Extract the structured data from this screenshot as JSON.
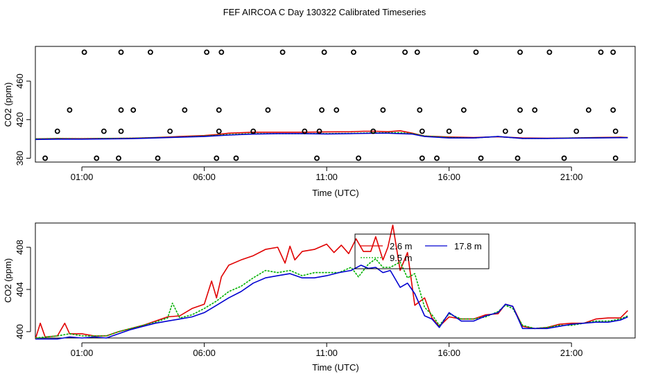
{
  "page": {
    "title": "FEF AIRCOA C  Day 130322  Calibrated Timeseries"
  },
  "colors": {
    "s26": "#e00000",
    "s95": "#00b000",
    "s178": "#0000d0",
    "points": "#000000",
    "axis": "#000000"
  },
  "chart_data": [
    {
      "id": "top",
      "type": "scatter+line",
      "xlabel": "Time (UTC)",
      "ylabel": "CO2 (ppm)",
      "xlim": [
        -0.9,
        23.6
      ],
      "ylim": [
        376,
        496
      ],
      "xticks": [
        1,
        6,
        11,
        16,
        21
      ],
      "xtick_labels": [
        "01:00",
        "06:00",
        "11:00",
        "16:00",
        "21:00"
      ],
      "yticks": [
        380,
        420,
        460
      ],
      "ytick_labels": [
        "380",
        "420",
        "460"
      ],
      "points": [
        [
          -0.5,
          380
        ],
        [
          0.0,
          408
        ],
        [
          0.5,
          430
        ],
        [
          1.1,
          490
        ],
        [
          1.6,
          380
        ],
        [
          1.9,
          408
        ],
        [
          2.5,
          380
        ],
        [
          2.6,
          408
        ],
        [
          2.6,
          430
        ],
        [
          2.6,
          490
        ],
        [
          3.1,
          430
        ],
        [
          3.8,
          490
        ],
        [
          4.1,
          380
        ],
        [
          4.6,
          408
        ],
        [
          5.2,
          430
        ],
        [
          6.1,
          490
        ],
        [
          6.5,
          380
        ],
        [
          6.6,
          408
        ],
        [
          6.6,
          430
        ],
        [
          6.7,
          490
        ],
        [
          7.3,
          380
        ],
        [
          8.0,
          408
        ],
        [
          8.6,
          430
        ],
        [
          9.2,
          490
        ],
        [
          10.1,
          408
        ],
        [
          10.6,
          380
        ],
        [
          10.7,
          408
        ],
        [
          10.8,
          430
        ],
        [
          10.9,
          490
        ],
        [
          11.4,
          430
        ],
        [
          12.1,
          490
        ],
        [
          12.3,
          380
        ],
        [
          12.9,
          408
        ],
        [
          13.3,
          430
        ],
        [
          14.2,
          490
        ],
        [
          14.7,
          490
        ],
        [
          14.8,
          430
        ],
        [
          14.9,
          408
        ],
        [
          14.9,
          380
        ],
        [
          15.5,
          380
        ],
        [
          16.0,
          408
        ],
        [
          16.6,
          430
        ],
        [
          17.1,
          490
        ],
        [
          17.3,
          380
        ],
        [
          18.3,
          408
        ],
        [
          18.8,
          380
        ],
        [
          18.9,
          408
        ],
        [
          18.9,
          430
        ],
        [
          18.9,
          490
        ],
        [
          19.5,
          430
        ],
        [
          20.1,
          490
        ],
        [
          20.7,
          380
        ],
        [
          21.2,
          408
        ],
        [
          21.7,
          430
        ],
        [
          22.2,
          490
        ],
        [
          22.7,
          490
        ],
        [
          22.7,
          430
        ],
        [
          22.8,
          408
        ],
        [
          22.8,
          380
        ]
      ],
      "series": [
        {
          "name": "2.6 m",
          "color_key": "s26",
          "x": [
            -0.9,
            0,
            1,
            2,
            3,
            4,
            5,
            6,
            6.5,
            7,
            8,
            9,
            10,
            11,
            12,
            12.5,
            13,
            13.5,
            14,
            14.5,
            15,
            16,
            17,
            18,
            19,
            20,
            21,
            22,
            23,
            23.3
          ],
          "y": [
            400,
            400.5,
            400.3,
            400.6,
            400.8,
            401.5,
            402.5,
            403.5,
            404.5,
            406,
            407,
            407,
            407,
            407.3,
            407.5,
            408,
            408,
            407.5,
            408.5,
            406,
            403,
            402,
            401.5,
            402.3,
            401,
            400.8,
            401,
            401.5,
            401.8,
            401.5
          ]
        },
        {
          "name": "9.5 m",
          "color_key": "s95",
          "x": [
            -0.9,
            0,
            1,
            2,
            3,
            4,
            5,
            6,
            7,
            8,
            9,
            10,
            11,
            12,
            13,
            13.5,
            14,
            14.5,
            15,
            16,
            17,
            18,
            19,
            20,
            21,
            22,
            23,
            23.3
          ],
          "y": [
            400,
            400.3,
            400.1,
            400.5,
            400.7,
            401.3,
            402,
            403,
            404.5,
            405.5,
            405.5,
            405.5,
            405.5,
            405.8,
            406.3,
            406.5,
            406.5,
            405.5,
            403,
            401.5,
            401,
            402.5,
            400.5,
            400.6,
            401,
            401.2,
            401.5,
            401.5
          ]
        },
        {
          "name": "17.8 m",
          "color_key": "s178",
          "x": [
            -0.9,
            0,
            1,
            2,
            3,
            4,
            5,
            6,
            7,
            8,
            9,
            10,
            11,
            12,
            13,
            13.5,
            14,
            14.5,
            15,
            16,
            17,
            18,
            19,
            20,
            21,
            22,
            23,
            23.3
          ],
          "y": [
            399.5,
            399.8,
            399.8,
            400,
            400.3,
            401,
            401.8,
            402.5,
            404,
            405,
            405.5,
            405.5,
            405.2,
            405.5,
            406,
            406,
            405.5,
            405,
            402.5,
            401,
            401,
            402.5,
            400.5,
            400.5,
            400.8,
            401,
            401.3,
            401.3
          ]
        }
      ]
    },
    {
      "id": "bottom",
      "type": "line",
      "xlabel": "Time (UTC)",
      "ylabel": "CO2 (ppm)",
      "xlim": [
        -0.9,
        23.6
      ],
      "ylim": [
        399.4,
        410.3
      ],
      "xticks": [
        1,
        6,
        11,
        16,
        21
      ],
      "xtick_labels": [
        "01:00",
        "06:00",
        "11:00",
        "16:00",
        "21:00"
      ],
      "yticks": [
        400,
        404,
        408
      ],
      "ytick_labels": [
        "400",
        "404",
        "408"
      ],
      "legend": {
        "placement": "top-center",
        "entries": [
          "2.6 m",
          "9.5 m",
          "17.8 m"
        ]
      },
      "series": [
        {
          "name": "2.6 m",
          "color_key": "s26",
          "x": [
            -0.9,
            -0.7,
            -0.5,
            0,
            0.3,
            0.5,
            1,
            1.5,
            2,
            2.5,
            3,
            3.5,
            4,
            4.5,
            5,
            5.5,
            6,
            6.3,
            6.5,
            6.7,
            7,
            7.5,
            8,
            8.5,
            9,
            9.3,
            9.5,
            9.7,
            10,
            10.5,
            11,
            11.3,
            11.6,
            11.9,
            12.2,
            12.5,
            12.8,
            13,
            13.3,
            13.5,
            13.7,
            14,
            14.3,
            14.6,
            15,
            15.3,
            15.6,
            16,
            16.5,
            17,
            17.5,
            18,
            18.3,
            18.6,
            19,
            19.5,
            20,
            20.5,
            21,
            21.5,
            22,
            22.5,
            23,
            23.3
          ],
          "y": [
            399.3,
            400.8,
            399.5,
            399.6,
            400.8,
            399.8,
            399.8,
            399.6,
            399.6,
            400,
            400.3,
            400.6,
            401,
            401.4,
            401.5,
            402.2,
            402.6,
            404.8,
            403.2,
            405.2,
            406.3,
            406.8,
            407.2,
            407.8,
            408,
            406.5,
            408.1,
            406.8,
            407.6,
            407.8,
            408.3,
            407.5,
            408.2,
            407.4,
            408.8,
            407.6,
            407.6,
            409,
            406.8,
            408,
            410.1,
            405.8,
            407.5,
            402.5,
            403.2,
            401.3,
            400.5,
            401.4,
            401.2,
            401.2,
            401.6,
            401.7,
            402.6,
            402.4,
            400.5,
            400.3,
            400.4,
            400.7,
            400.8,
            400.8,
            401.2,
            401.3,
            401.3,
            402
          ]
        },
        {
          "name": "9.5 m",
          "color_key": "s95",
          "x": [
            -0.9,
            0,
            0.5,
            1,
            1.5,
            2,
            2.5,
            3,
            3.5,
            4,
            4.5,
            4.7,
            5,
            5.5,
            6,
            6.5,
            7,
            7.5,
            8,
            8.5,
            9,
            9.5,
            10,
            10.5,
            11,
            11.5,
            12,
            12.3,
            12.7,
            13,
            13.3,
            13.6,
            14,
            14.3,
            14.6,
            15,
            15.3,
            15.6,
            16,
            16.5,
            17,
            17.5,
            18,
            18.3,
            18.6,
            19,
            19.5,
            20,
            20.5,
            21,
            21.5,
            22,
            22.5,
            23,
            23.3
          ],
          "y": [
            399.4,
            399.6,
            399.8,
            399.6,
            399.6,
            399.6,
            400,
            400.3,
            400.6,
            400.9,
            401.3,
            402.7,
            401.3,
            401.6,
            402.2,
            402.9,
            403.8,
            404.3,
            405.1,
            405.8,
            405.6,
            405.8,
            405.3,
            405.6,
            405.6,
            405.6,
            406.1,
            405.2,
            406.4,
            406.9,
            406.1,
            406.1,
            406.6,
            405.1,
            405.5,
            402.3,
            401.6,
            400.6,
            401.7,
            401.2,
            401.2,
            401.4,
            401.9,
            402.5,
            402.2,
            400.6,
            400.3,
            400.4,
            400.6,
            400.6,
            400.8,
            401,
            401,
            401.2,
            401.5
          ]
        },
        {
          "name": "17.8 m",
          "color_key": "s178",
          "x": [
            -0.9,
            0,
            0.5,
            1,
            1.5,
            2,
            2.5,
            3,
            3.5,
            4,
            4.5,
            5,
            5.5,
            6,
            6.5,
            7,
            7.5,
            8,
            8.5,
            9,
            9.5,
            10,
            10.5,
            11,
            11.5,
            12,
            12.4,
            12.7,
            13,
            13.3,
            13.6,
            14,
            14.3,
            14.6,
            15,
            15.3,
            15.6,
            16,
            16.5,
            17,
            17.5,
            18,
            18.3,
            18.6,
            19,
            19.5,
            20,
            20.5,
            21,
            21.5,
            22,
            22.5,
            23,
            23.3
          ],
          "y": [
            399.3,
            399.3,
            399.5,
            399.4,
            399.5,
            399.4,
            399.8,
            400.2,
            400.5,
            400.8,
            401,
            401.2,
            401.4,
            401.8,
            402.5,
            403.2,
            403.8,
            404.6,
            405.1,
            405.3,
            405.5,
            405.1,
            405.1,
            405.3,
            405.6,
            405.8,
            406.3,
            406,
            406.1,
            405.6,
            405.8,
            404.2,
            404.6,
            403.6,
            401.5,
            401.2,
            400.4,
            401.8,
            401,
            401,
            401.5,
            401.8,
            402.6,
            402.4,
            400.3,
            400.3,
            400.3,
            400.5,
            400.7,
            400.8,
            400.9,
            400.9,
            401.1,
            401.4
          ]
        }
      ]
    }
  ]
}
